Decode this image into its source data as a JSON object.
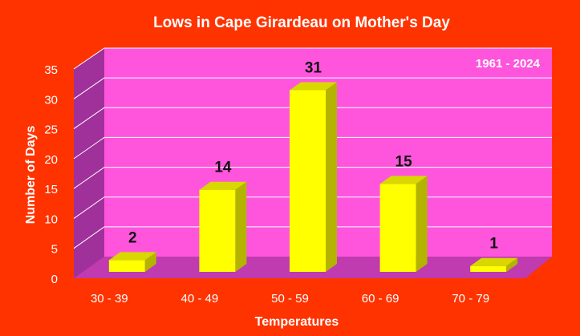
{
  "chart_data": {
    "type": "bar",
    "title": "Lows in Cape Girardeau on Mother's Day",
    "annotation": "1961 - 2024",
    "xlabel": "Temperatures",
    "ylabel": "Number of Days",
    "categories": [
      "30 - 39",
      "40 - 49",
      "50 - 59",
      "60 - 69",
      "70 - 79"
    ],
    "values": [
      2,
      14,
      31,
      15,
      1
    ],
    "ylim": [
      0,
      35
    ],
    "yticks": [
      0,
      5,
      10,
      15,
      20,
      25,
      30,
      35
    ],
    "grid": true,
    "data_labels": true,
    "colors": {
      "background": "#ff3300",
      "plot_back": "#ff55dd",
      "plot_side": "#a0309a",
      "floor": "#c03ab0",
      "bar_front": "#ffff00",
      "bar_top": "#d8d800",
      "bar_side": "#b4b400",
      "gridline": "#ffffff",
      "title_text": "#ffffff",
      "tick_text": "#ffffff",
      "value_text": "#111111"
    }
  }
}
